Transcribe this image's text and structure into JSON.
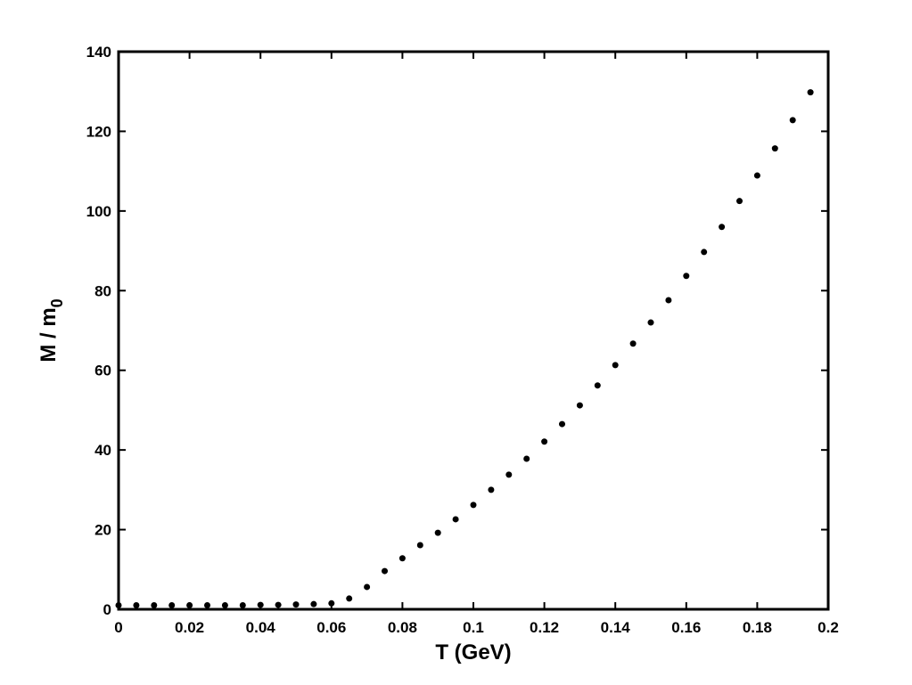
{
  "chart_data": {
    "type": "scatter",
    "x_label": "T (GeV)",
    "y_label": {
      "text": "M / m",
      "subscript": "0"
    },
    "x": [
      0,
      0.005,
      0.01,
      0.015,
      0.02,
      0.025,
      0.03,
      0.035,
      0.04,
      0.045,
      0.05,
      0.055,
      0.06,
      0.065,
      0.07,
      0.075,
      0.08,
      0.085,
      0.09,
      0.095,
      0.1,
      0.105,
      0.11,
      0.115,
      0.12,
      0.125,
      0.13,
      0.135,
      0.14,
      0.145,
      0.15,
      0.155,
      0.16,
      0.165,
      0.17,
      0.175,
      0.18,
      0.185,
      0.19,
      0.195
    ],
    "values": [
      1.0,
      1.0,
      1.0,
      1.0,
      1.0,
      1.0,
      1.0,
      1.0,
      1.1,
      1.1,
      1.2,
      1.3,
      1.5,
      2.7,
      5.6,
      9.6,
      12.8,
      16.1,
      19.2,
      22.6,
      26.2,
      30.0,
      33.8,
      37.8,
      42.1,
      46.5,
      51.2,
      56.2,
      61.3,
      66.7,
      72.0,
      77.6,
      83.7,
      89.7,
      96.0,
      102.5,
      108.9,
      115.7,
      122.8,
      129.8
    ],
    "color": "#000000",
    "xlim": [
      0,
      0.2
    ],
    "xticks": [
      0,
      0.02,
      0.04,
      0.06,
      0.08,
      0.1,
      0.12,
      0.14,
      0.16,
      0.18,
      0.2
    ],
    "ylim": [
      0,
      140
    ],
    "yticks": [
      0,
      20,
      40,
      60,
      80,
      100,
      120,
      140
    ]
  }
}
